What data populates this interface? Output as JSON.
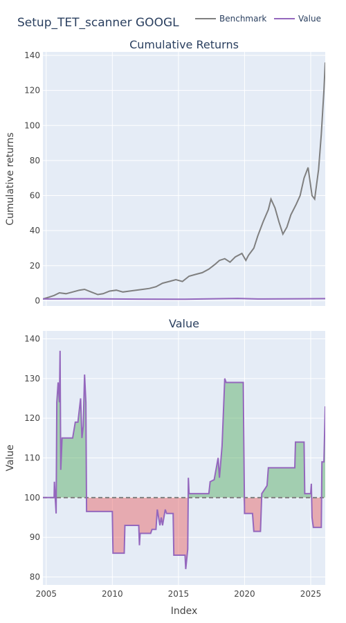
{
  "title": "Setup_TET_scanner GOOGL",
  "legend": [
    {
      "label": "Benchmark",
      "color": "#7f7f7f"
    },
    {
      "label": "Value",
      "color": "#9467bd"
    }
  ],
  "chart_data": [
    {
      "type": "line",
      "title": "Cumulative Returns",
      "ylabel": "Cumulative returns",
      "xlabel": "",
      "xlim": [
        2004.75,
        2026.1
      ],
      "ylim": [
        -3,
        142
      ],
      "yticks": [
        0,
        20,
        40,
        60,
        80,
        100,
        120,
        140
      ],
      "xticks": [
        2005,
        2010,
        2015,
        2020,
        2025
      ],
      "grid": true,
      "series": [
        {
          "name": "Benchmark",
          "color": "#7f7f7f",
          "x": [
            2004.75,
            2005.2,
            2005.6,
            2006.0,
            2006.5,
            2007.0,
            2007.5,
            2007.9,
            2008.4,
            2008.9,
            2009.3,
            2009.8,
            2010.3,
            2010.8,
            2011.3,
            2011.8,
            2012.3,
            2012.8,
            2013.3,
            2013.8,
            2014.3,
            2014.8,
            2015.3,
            2015.8,
            2016.3,
            2016.8,
            2017.3,
            2017.8,
            2018.1,
            2018.5,
            2018.9,
            2019.3,
            2019.8,
            2020.1,
            2020.3,
            2020.7,
            2021.0,
            2021.4,
            2021.8,
            2022.0,
            2022.3,
            2022.6,
            2022.9,
            2023.2,
            2023.5,
            2023.9,
            2024.2,
            2024.5,
            2024.8,
            2025.1,
            2025.3,
            2025.6,
            2025.8,
            2026.0,
            2026.1
          ],
          "values": [
            1,
            2,
            3,
            4.5,
            4,
            5,
            6,
            6.5,
            5,
            3.5,
            4,
            5.5,
            6,
            5,
            5.5,
            6,
            6.5,
            7,
            8,
            10,
            11,
            12,
            11,
            14,
            15,
            16,
            18,
            21,
            23,
            24,
            22,
            25,
            27,
            23,
            26,
            30,
            37,
            45,
            52,
            58,
            53,
            45,
            38,
            42,
            49,
            55,
            60,
            70,
            76,
            60,
            58,
            75,
            95,
            120,
            136
          ]
        },
        {
          "name": "Value",
          "color": "#9467bd",
          "x": [
            2004.75,
            2008.0,
            2012.0,
            2015.5,
            2018.5,
            2019.5,
            2021.0,
            2024.0,
            2026.1
          ],
          "values": [
            1.0,
            1.1,
            0.9,
            0.85,
            1.2,
            1.3,
            1.0,
            1.1,
            1.2
          ]
        }
      ]
    },
    {
      "type": "line",
      "title": "Value",
      "ylabel": "Value",
      "xlabel": "Index",
      "xlim": [
        2004.75,
        2026.1
      ],
      "ylim": [
        78,
        142
      ],
      "yticks": [
        80,
        90,
        100,
        110,
        120,
        130,
        140
      ],
      "xticks": [
        2005,
        2010,
        2015,
        2020,
        2025
      ],
      "baseline": 100,
      "grid": true,
      "series": [
        {
          "name": "Value",
          "color": "#9467bd",
          "x": [
            2004.75,
            2005.6,
            2005.62,
            2005.75,
            2005.8,
            2005.9,
            2006.0,
            2006.05,
            2006.1,
            2006.2,
            2006.3,
            2006.4,
            2007.0,
            2007.2,
            2007.4,
            2007.6,
            2007.7,
            2007.8,
            2007.9,
            2008.0,
            2008.05,
            2008.1,
            2010.0,
            2010.05,
            2010.9,
            2010.95,
            2012.0,
            2012.05,
            2012.1,
            2012.2,
            2012.9,
            2013.0,
            2013.3,
            2013.4,
            2013.6,
            2013.7,
            2013.8,
            2014.0,
            2014.1,
            2014.6,
            2014.65,
            2015.5,
            2015.55,
            2015.7,
            2015.75,
            2015.8,
            2016.0,
            2016.1,
            2017.3,
            2017.4,
            2017.7,
            2018.0,
            2018.1,
            2018.3,
            2018.5,
            2018.6,
            2019.9,
            2020.0,
            2020.1,
            2020.6,
            2020.7,
            2020.75,
            2021.2,
            2021.3,
            2021.7,
            2021.8,
            2022.2,
            2023.8,
            2023.85,
            2024.5,
            2024.55,
            2025.0,
            2025.05,
            2025.1,
            2025.2,
            2025.3,
            2025.35,
            2025.8,
            2025.85,
            2026.0,
            2026.1
          ],
          "values": [
            100,
            100,
            104,
            96,
            124,
            129,
            124,
            137,
            107,
            115,
            115,
            115,
            115,
            119,
            119,
            125,
            115,
            118,
            131,
            124,
            96.5,
            96.5,
            96.5,
            86,
            86,
            93,
            93,
            88,
            91,
            91,
            91,
            92,
            92,
            97,
            93,
            95,
            93,
            97,
            96,
            96,
            85.5,
            85.5,
            82,
            87,
            105,
            101,
            101,
            101,
            101,
            104,
            104.5,
            110,
            105,
            113,
            130,
            129,
            129,
            96,
            96,
            96,
            91.5,
            91.5,
            91.5,
            101,
            103,
            107.5,
            107.5,
            107.5,
            114,
            114,
            101,
            101,
            103.5,
            95,
            92.5,
            92.5,
            92.5,
            92.5,
            109,
            109,
            123
          ]
        }
      ]
    }
  ]
}
